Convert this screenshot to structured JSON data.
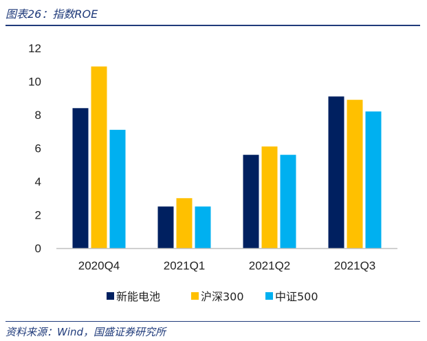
{
  "figure": {
    "title": "图表26：指数ROE",
    "source": "资料来源：Wind，国盛证券研究所"
  },
  "colors": {
    "rule": "#1f3a7a",
    "axis": "#bfbfbf",
    "text": "#222222"
  },
  "chart_data": {
    "type": "bar",
    "title": "",
    "xlabel": "",
    "ylabel": "",
    "categories": [
      "2020Q4",
      "2021Q1",
      "2021Q2",
      "2021Q3"
    ],
    "ylim": [
      0,
      12
    ],
    "yticks": [
      0,
      2,
      4,
      6,
      8,
      10,
      12
    ],
    "grid": false,
    "legend_position": "bottom",
    "series": [
      {
        "name": "新能电池",
        "color": "#002060",
        "values": [
          8.4,
          2.5,
          5.6,
          9.1
        ]
      },
      {
        "name": "沪深300",
        "color": "#ffc000",
        "values": [
          10.9,
          3.0,
          6.1,
          8.9
        ]
      },
      {
        "name": "中证500",
        "color": "#00b0f0",
        "values": [
          7.1,
          2.5,
          5.6,
          8.2
        ]
      }
    ]
  }
}
